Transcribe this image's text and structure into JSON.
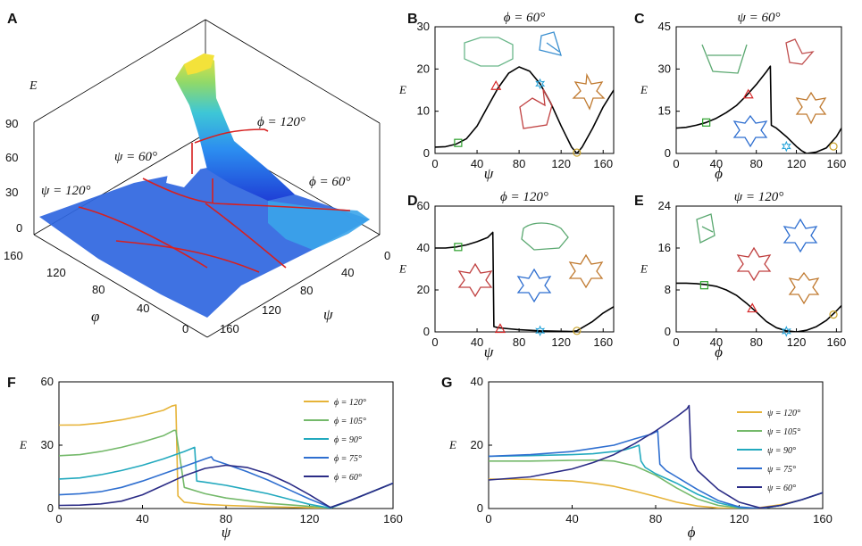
{
  "panels": {
    "A": {
      "label": "A"
    },
    "B": {
      "label": "B"
    },
    "C": {
      "label": "C"
    },
    "D": {
      "label": "D"
    },
    "E": {
      "label": "E"
    },
    "F": {
      "label": "F"
    },
    "G": {
      "label": "G"
    }
  },
  "chart_data": [
    {
      "panel": "A",
      "type": "surface",
      "zlabel": "E",
      "xlabel": "φ",
      "ylabel": "ψ",
      "z_ticks": [
        "0",
        "30",
        "60",
        "90"
      ],
      "phi_ticks": [
        "0",
        "40",
        "80",
        "120",
        "160"
      ],
      "psi_ticks": [
        "0",
        "40",
        "80",
        "120",
        "160"
      ],
      "annotations": [
        "ψ = 120°",
        "ψ = 60°",
        "ϕ = 120°",
        "ϕ = 60°"
      ]
    },
    {
      "panel": "B",
      "type": "line",
      "title": "ϕ = 60°",
      "xlabel": "ψ",
      "ylabel": "E",
      "xlim": [
        0,
        170
      ],
      "ylim": [
        0,
        30
      ],
      "xticks": [
        "0",
        "40",
        "80",
        "120",
        "160"
      ],
      "yticks": [
        "0",
        "10",
        "20",
        "30"
      ],
      "x": [
        0,
        10,
        20,
        30,
        40,
        50,
        60,
        70,
        80,
        90,
        100,
        110,
        120,
        130,
        135,
        140,
        150,
        160,
        170
      ],
      "y": [
        1.5,
        1.6,
        2.2,
        3.5,
        6.5,
        11,
        15.5,
        19,
        20.5,
        19.5,
        16.5,
        12,
        6.5,
        1.5,
        0,
        1.5,
        6,
        11,
        15
      ],
      "markers": [
        {
          "shape": "square",
          "x": 22,
          "y": 2.5,
          "color": "#2ca02c"
        },
        {
          "shape": "triangle",
          "x": 58,
          "y": 16,
          "color": "#d62728"
        },
        {
          "shape": "star",
          "x": 100,
          "y": 16.5,
          "color": "#1fa0d8"
        },
        {
          "shape": "circle",
          "x": 135,
          "y": 0.2,
          "color": "#c9a227"
        }
      ]
    },
    {
      "panel": "C",
      "type": "line",
      "title": "ψ = 60°",
      "xlabel": "ϕ",
      "ylabel": "E",
      "xlim": [
        0,
        165
      ],
      "ylim": [
        0,
        45
      ],
      "xticks": [
        "0",
        "40",
        "80",
        "120",
        "160"
      ],
      "yticks": [
        "0",
        "15",
        "30",
        "45"
      ],
      "x": [
        0,
        10,
        20,
        30,
        40,
        50,
        60,
        70,
        80,
        90,
        94,
        95,
        100,
        110,
        120,
        125,
        130,
        140,
        150,
        160,
        165
      ],
      "y": [
        9,
        9.3,
        10,
        11,
        12.5,
        14.5,
        17,
        20.5,
        24.5,
        29,
        31,
        10,
        9,
        6,
        2.5,
        1,
        0,
        0.5,
        2,
        6,
        9
      ],
      "markers": [
        {
          "shape": "square",
          "x": 30,
          "y": 11,
          "color": "#2ca02c"
        },
        {
          "shape": "triangle",
          "x": 72,
          "y": 21,
          "color": "#d62728"
        },
        {
          "shape": "star",
          "x": 110,
          "y": 2.5,
          "color": "#1fa0d8"
        },
        {
          "shape": "circle",
          "x": 157,
          "y": 2.5,
          "color": "#c9a227"
        }
      ]
    },
    {
      "panel": "D",
      "type": "line",
      "title": "ϕ = 120°",
      "xlabel": "ψ",
      "ylabel": "E",
      "xlim": [
        0,
        170
      ],
      "ylim": [
        0,
        60
      ],
      "xticks": [
        "0",
        "40",
        "80",
        "120",
        "160"
      ],
      "yticks": [
        "0",
        "20",
        "40",
        "60"
      ],
      "x": [
        0,
        10,
        20,
        30,
        40,
        50,
        55,
        56,
        60,
        70,
        80,
        100,
        120,
        130,
        135,
        140,
        150,
        160,
        170
      ],
      "y": [
        40,
        40,
        40.5,
        41.5,
        43,
        45,
        47.5,
        2.5,
        2,
        1.5,
        1,
        0.5,
        0.3,
        0.2,
        0.5,
        2,
        5,
        9,
        12
      ],
      "markers": [
        {
          "shape": "square",
          "x": 22,
          "y": 40.5,
          "color": "#2ca02c"
        },
        {
          "shape": "triangle",
          "x": 62,
          "y": 1.5,
          "color": "#d62728"
        },
        {
          "shape": "star",
          "x": 100,
          "y": 0.5,
          "color": "#1fa0d8"
        },
        {
          "shape": "circle",
          "x": 135,
          "y": 0.5,
          "color": "#c9a227"
        }
      ]
    },
    {
      "panel": "E",
      "type": "line",
      "title": "ψ = 120°",
      "xlabel": "ϕ",
      "ylabel": "E",
      "xlim": [
        0,
        165
      ],
      "ylim": [
        0,
        24
      ],
      "xticks": [
        "0",
        "40",
        "80",
        "120",
        "160"
      ],
      "yticks": [
        "0",
        "8",
        "16",
        "24"
      ],
      "x": [
        0,
        10,
        20,
        30,
        40,
        50,
        60,
        70,
        80,
        90,
        100,
        110,
        120,
        130,
        140,
        150,
        160,
        165
      ],
      "y": [
        9.3,
        9.3,
        9.2,
        9,
        8.7,
        8,
        7,
        5.5,
        3.8,
        2,
        0.8,
        0.2,
        0,
        0.3,
        1,
        2.2,
        4,
        5
      ],
      "markers": [
        {
          "shape": "square",
          "x": 28,
          "y": 8.9,
          "color": "#2ca02c"
        },
        {
          "shape": "triangle",
          "x": 76,
          "y": 4.5,
          "color": "#d62728"
        },
        {
          "shape": "star",
          "x": 110,
          "y": 0.1,
          "color": "#1fa0d8"
        },
        {
          "shape": "circle",
          "x": 157,
          "y": 3.3,
          "color": "#c9a227"
        }
      ]
    },
    {
      "panel": "F",
      "type": "line",
      "xlabel": "ψ",
      "ylabel": "E",
      "xlim": [
        0,
        160
      ],
      "ylim": [
        0,
        60
      ],
      "xticks": [
        "0",
        "40",
        "80",
        "120",
        "160"
      ],
      "yticks": [
        "0",
        "30",
        "60"
      ],
      "legend_position": "right",
      "series": [
        {
          "name": "ϕ = 120°",
          "color": "#e6b338",
          "x": [
            0,
            10,
            20,
            30,
            40,
            50,
            54,
            56,
            57,
            60,
            70,
            80,
            100,
            120,
            130,
            140,
            150,
            160
          ],
          "y": [
            39.5,
            39.6,
            40.5,
            42,
            44,
            46.5,
            48.5,
            49,
            6,
            3,
            2,
            1.5,
            0.8,
            0.4,
            0.2,
            4,
            8,
            12
          ]
        },
        {
          "name": "ϕ = 105°",
          "color": "#74b96a",
          "x": [
            0,
            10,
            20,
            30,
            40,
            50,
            55,
            56,
            60,
            70,
            80,
            100,
            120,
            130,
            140,
            150,
            160
          ],
          "y": [
            25,
            25.5,
            27,
            29,
            31.5,
            34.5,
            37,
            37,
            10,
            7,
            5,
            2.5,
            1,
            0.3,
            4,
            8,
            12
          ]
        },
        {
          "name": "ϕ = 90°",
          "color": "#22a9be",
          "x": [
            0,
            10,
            20,
            30,
            40,
            50,
            60,
            65,
            66,
            70,
            80,
            90,
            100,
            110,
            120,
            130,
            140,
            150,
            160
          ],
          "y": [
            14,
            14.5,
            16,
            18,
            20.5,
            23.5,
            27,
            29,
            13,
            12.5,
            11,
            9,
            7,
            4.5,
            2,
            0.2,
            4,
            8,
            12
          ]
        },
        {
          "name": "ϕ = 75°",
          "color": "#2f6fd0",
          "x": [
            0,
            10,
            20,
            30,
            40,
            50,
            60,
            70,
            73,
            74,
            80,
            90,
            100,
            110,
            120,
            130,
            140,
            150,
            160
          ],
          "y": [
            6.5,
            7,
            8,
            10,
            13,
            16.5,
            20,
            23.5,
            24.5,
            23,
            21,
            17.5,
            13.5,
            9,
            4.5,
            0.5,
            4,
            8,
            12
          ]
        },
        {
          "name": "ϕ = 60°",
          "color": "#2b2c86",
          "x": [
            0,
            10,
            20,
            30,
            40,
            50,
            60,
            70,
            80,
            90,
            100,
            110,
            120,
            130,
            140,
            150,
            160
          ],
          "y": [
            1.5,
            1.6,
            2.2,
            3.5,
            6.5,
            11,
            15.5,
            19,
            20.5,
            19.5,
            16.5,
            12,
            6.5,
            0.5,
            4,
            8,
            12
          ]
        }
      ]
    },
    {
      "panel": "G",
      "type": "line",
      "xlabel": "ϕ",
      "ylabel": "E",
      "xlim": [
        0,
        160
      ],
      "ylim": [
        0,
        40
      ],
      "xticks": [
        "0",
        "40",
        "80",
        "120",
        "160"
      ],
      "yticks": [
        "0",
        "20",
        "40"
      ],
      "legend_position": "right",
      "series": [
        {
          "name": "ψ = 120°",
          "color": "#e6b338",
          "x": [
            0,
            20,
            40,
            50,
            60,
            70,
            80,
            90,
            100,
            110,
            120,
            130,
            140,
            150,
            160
          ],
          "y": [
            9.3,
            9.2,
            8.7,
            8,
            7,
            5.5,
            3.8,
            2,
            0.8,
            0.2,
            0,
            0.3,
            1.2,
            2.8,
            5
          ]
        },
        {
          "name": "ψ = 105°",
          "color": "#74b96a",
          "x": [
            0,
            20,
            40,
            50,
            60,
            70,
            80,
            90,
            100,
            110,
            120,
            130,
            140,
            150,
            160
          ],
          "y": [
            15,
            15,
            15.2,
            15.3,
            15,
            13.5,
            10.5,
            6.5,
            3,
            1,
            0.2,
            0,
            1,
            2.8,
            5
          ]
        },
        {
          "name": "ψ = 90°",
          "color": "#22a9be",
          "x": [
            0,
            20,
            40,
            50,
            60,
            65,
            70,
            72,
            73,
            75,
            80,
            90,
            100,
            110,
            120,
            130,
            140,
            150,
            160
          ],
          "y": [
            16.5,
            16.7,
            17,
            17.3,
            18,
            18.5,
            19.5,
            20,
            15,
            13,
            11,
            8,
            4.5,
            1.8,
            0.3,
            0,
            1,
            2.8,
            5
          ]
        },
        {
          "name": "ψ = 75°",
          "color": "#2f6fd0",
          "x": [
            0,
            20,
            40,
            50,
            60,
            70,
            78,
            81,
            82,
            85,
            90,
            100,
            110,
            120,
            130,
            140,
            150,
            160
          ],
          "y": [
            16.5,
            17,
            18,
            19,
            20,
            22,
            23.5,
            24.5,
            14,
            12,
            10,
            6,
            2.5,
            0.5,
            0,
            1,
            2.8,
            5
          ]
        },
        {
          "name": "ψ = 60°",
          "color": "#2b2c86",
          "x": [
            0,
            20,
            40,
            50,
            60,
            70,
            80,
            90,
            95,
            96,
            97,
            100,
            110,
            120,
            130,
            140,
            150,
            160
          ],
          "y": [
            9,
            10,
            12.5,
            14.5,
            17,
            20.5,
            24.5,
            29,
            31.5,
            32.5,
            16,
            12,
            6,
            2,
            0.2,
            1,
            2.8,
            5
          ]
        }
      ]
    }
  ]
}
